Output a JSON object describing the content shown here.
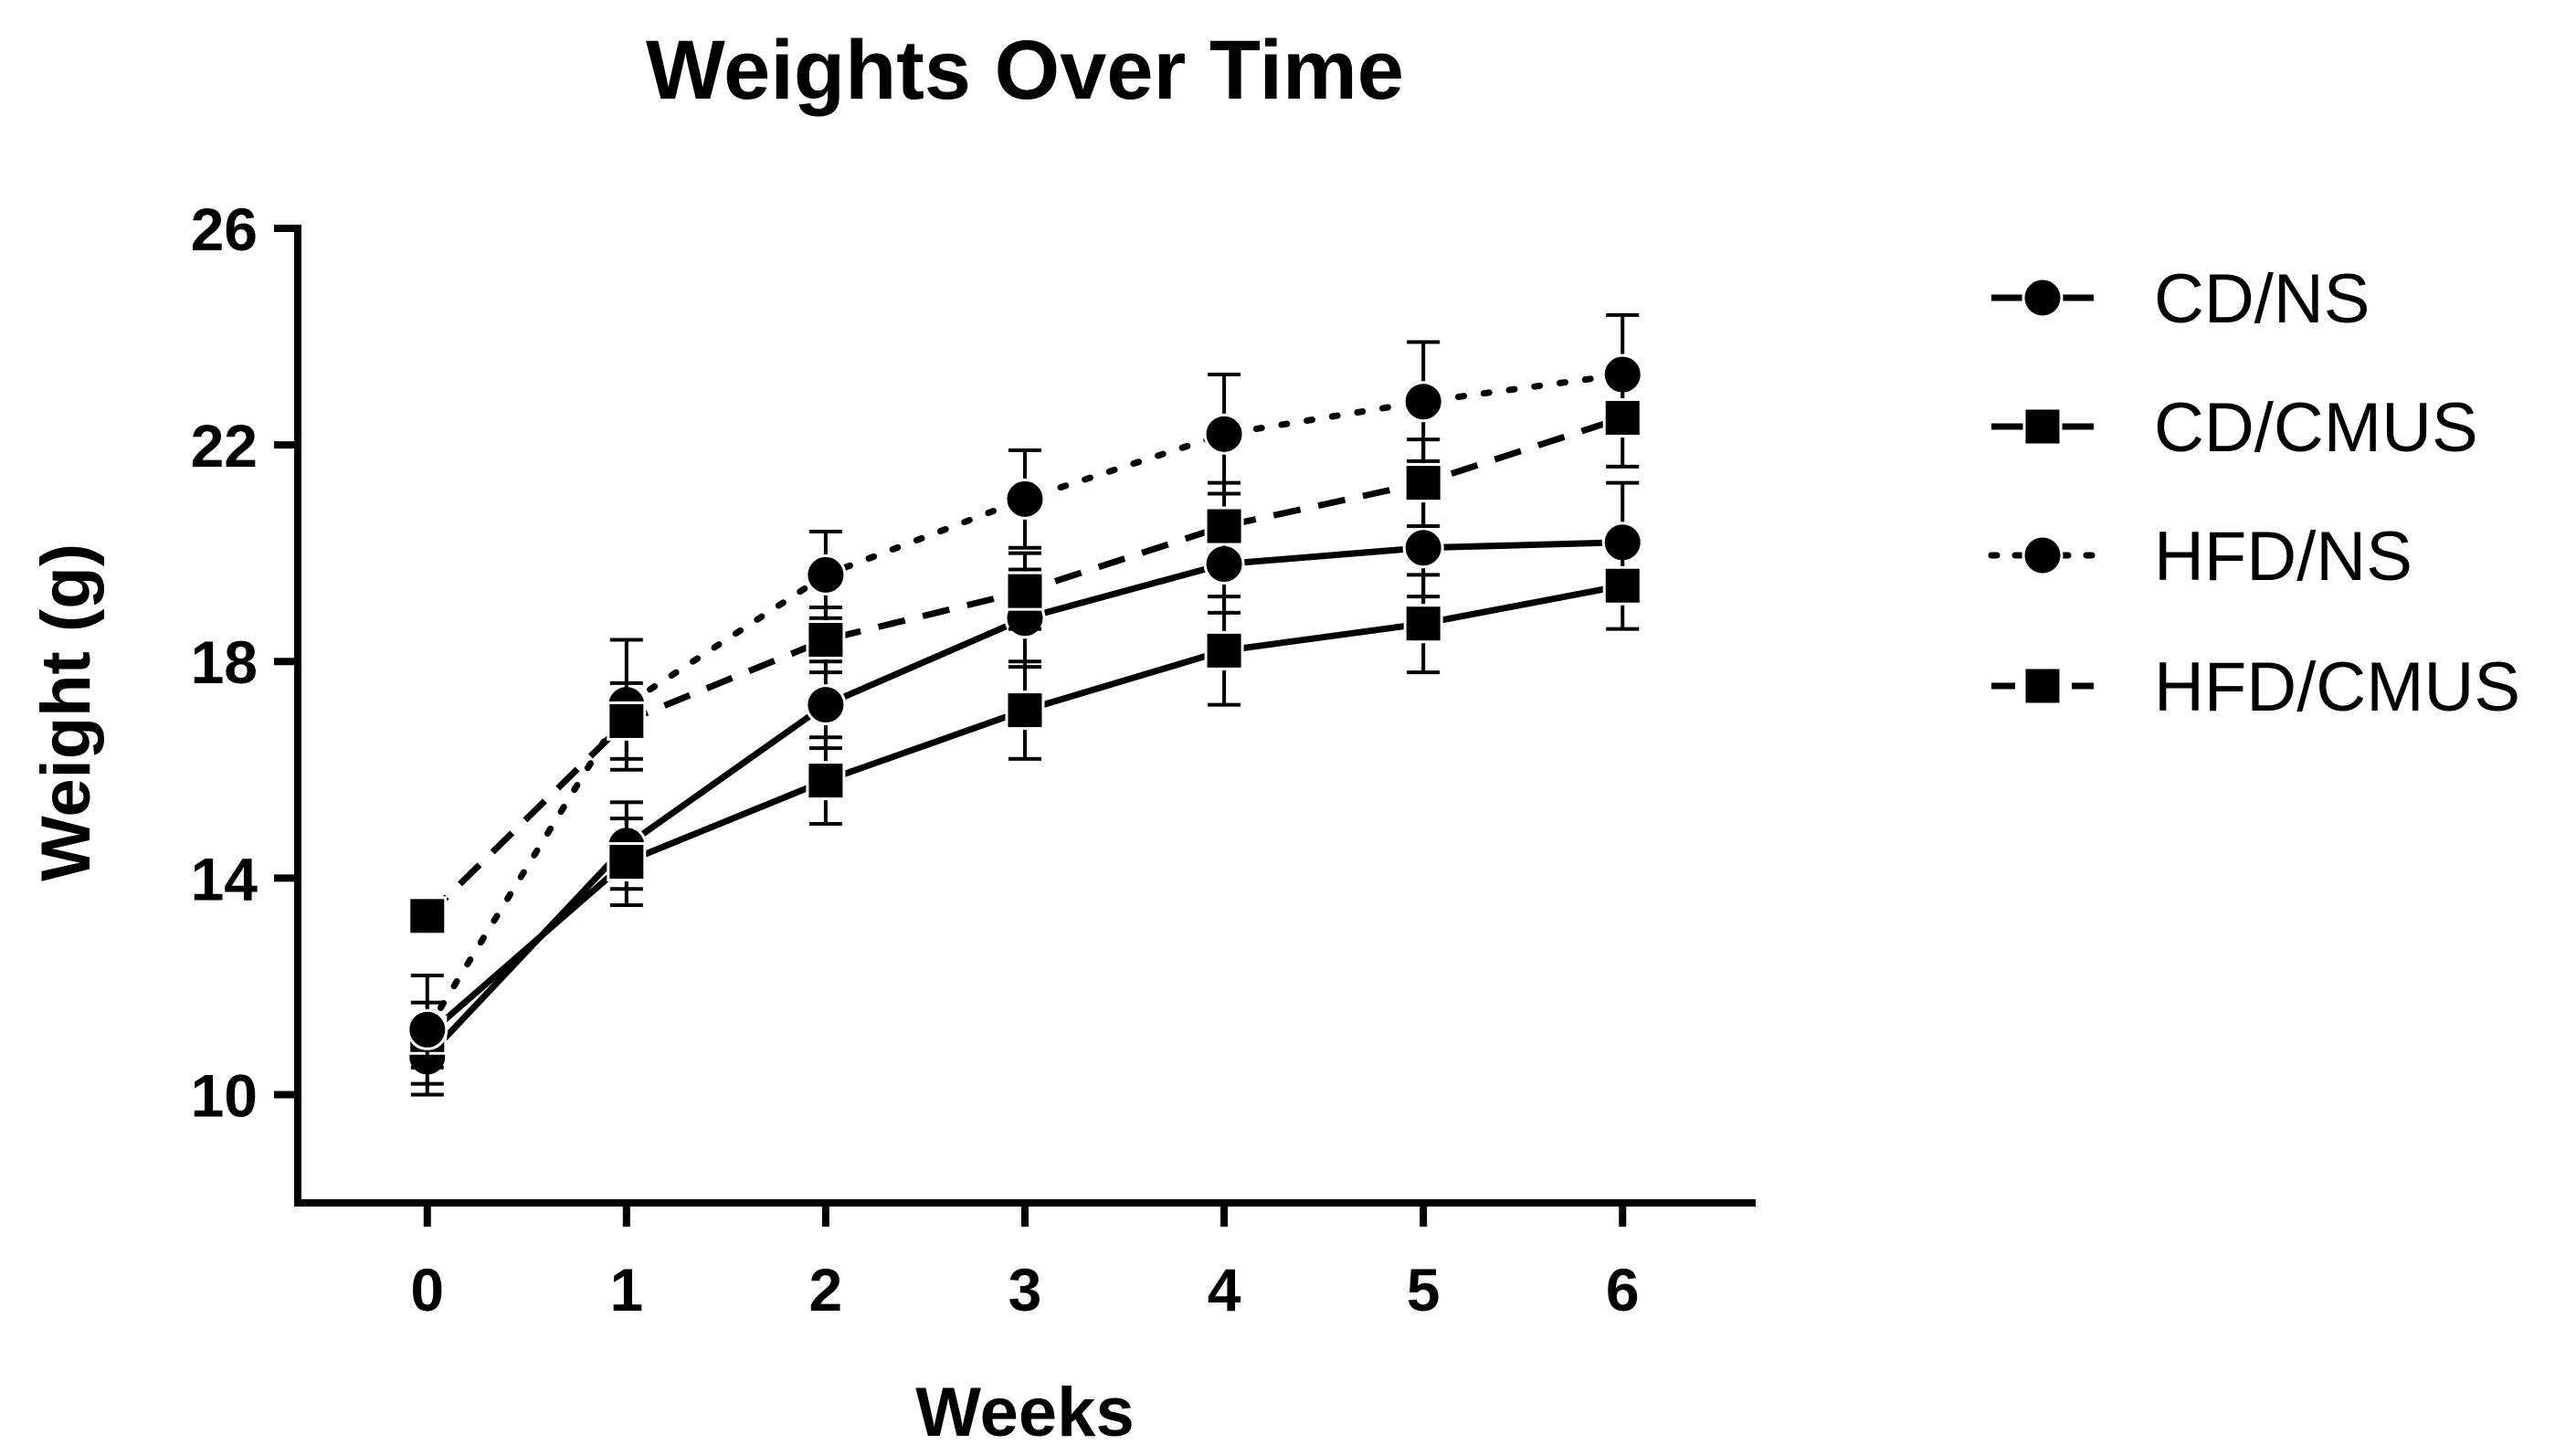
{
  "chart_data": {
    "type": "line",
    "title": "Weights Over Time",
    "xlabel": "Weeks",
    "ylabel": "Weight (g)",
    "x": [
      0,
      1,
      2,
      3,
      4,
      5,
      6
    ],
    "xticks": [
      "0",
      "1",
      "2",
      "3",
      "4",
      "5",
      "6"
    ],
    "xlim": [
      -0.65,
      6.65
    ],
    "yticks": [
      "10",
      "14",
      "18",
      "22",
      "26"
    ],
    "ylim": [
      8,
      26
    ],
    "grid": false,
    "legend_position": "right",
    "series": [
      {
        "name": "CD/NS",
        "marker": "circle",
        "line_style": "solid",
        "values": [
          10.7,
          14.6,
          17.2,
          18.8,
          19.8,
          20.1,
          20.2
        ],
        "errors": [
          0.7,
          0.8,
          0.8,
          0.9,
          0.9,
          0.9,
          1.1
        ]
      },
      {
        "name": "CD/CMUS",
        "marker": "square",
        "line_style": "solid",
        "values": [
          11.1,
          14.3,
          15.8,
          17.1,
          18.2,
          18.7,
          19.4
        ],
        "errors": [
          0.6,
          0.8,
          0.8,
          0.9,
          1.0,
          0.9,
          0.8
        ]
      },
      {
        "name": "HFD/NS",
        "marker": "circle",
        "line_style": "dotted",
        "values": [
          11.2,
          17.2,
          19.6,
          21.0,
          22.2,
          22.8,
          23.3
        ],
        "errors": [
          1.0,
          1.2,
          0.8,
          0.9,
          1.1,
          1.1,
          1.1
        ]
      },
      {
        "name": "HFD/CMUS",
        "marker": "square",
        "line_style": "dashed",
        "values": [
          13.3,
          16.9,
          18.4,
          19.3,
          20.5,
          21.3,
          22.5
        ],
        "errors": [
          0.0,
          0.7,
          0.6,
          0.7,
          0.8,
          0.8,
          0.9
        ]
      }
    ],
    "colors": {
      "ink": "#000000",
      "background": "#ffffff"
    }
  }
}
